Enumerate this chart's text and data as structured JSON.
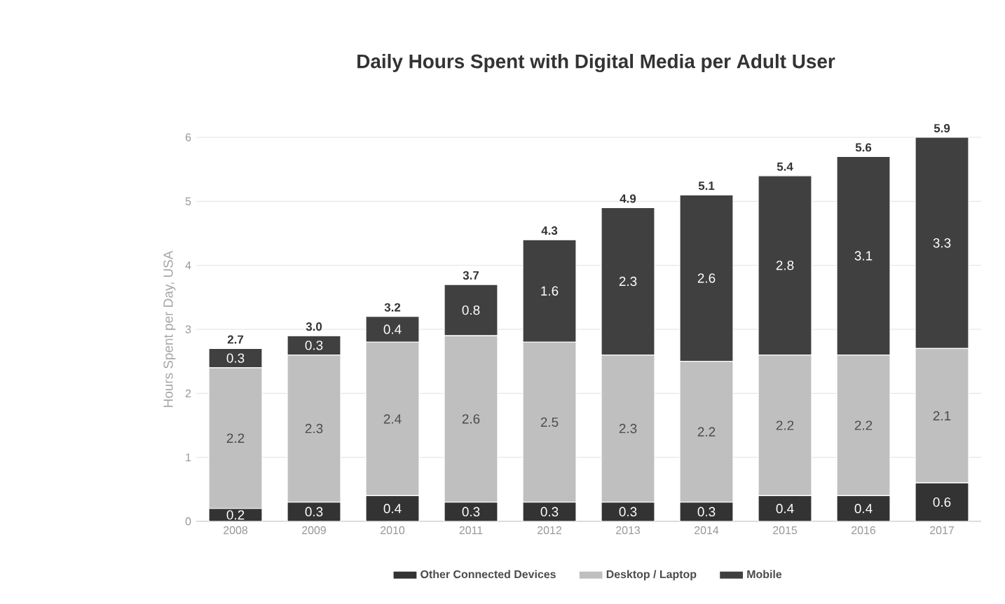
{
  "chart_data": {
    "type": "bar",
    "stacked": true,
    "title": "Daily Hours Spent with Digital Media per Adult User",
    "ylabel": "Hours Spent per Day, USA",
    "categories": [
      "2008",
      "2009",
      "2010",
      "2011",
      "2012",
      "2013",
      "2014",
      "2015",
      "2016",
      "2017"
    ],
    "series": [
      {
        "name": "Other Connected Devices",
        "color": "#333333",
        "values": [
          0.2,
          0.3,
          0.4,
          0.3,
          0.3,
          0.3,
          0.3,
          0.4,
          0.4,
          0.6
        ]
      },
      {
        "name": "Desktop / Laptop",
        "color": "#bfbfbf",
        "values": [
          2.2,
          2.3,
          2.4,
          2.6,
          2.5,
          2.3,
          2.2,
          2.2,
          2.2,
          2.1
        ]
      },
      {
        "name": "Mobile",
        "color": "#404040",
        "values": [
          0.3,
          0.3,
          0.4,
          0.8,
          1.6,
          2.3,
          2.6,
          2.8,
          3.1,
          3.3
        ]
      }
    ],
    "totals": [
      "2.7",
      "3.0",
      "3.2",
      "3.7",
      "4.3",
      "4.9",
      "5.1",
      "5.4",
      "5.6",
      "5.9"
    ],
    "data_labels": true,
    "ylim": [
      0,
      6
    ],
    "yticks": [
      0,
      1,
      2,
      3,
      4,
      5,
      6
    ],
    "grid": "y",
    "legend": "bottom"
  }
}
